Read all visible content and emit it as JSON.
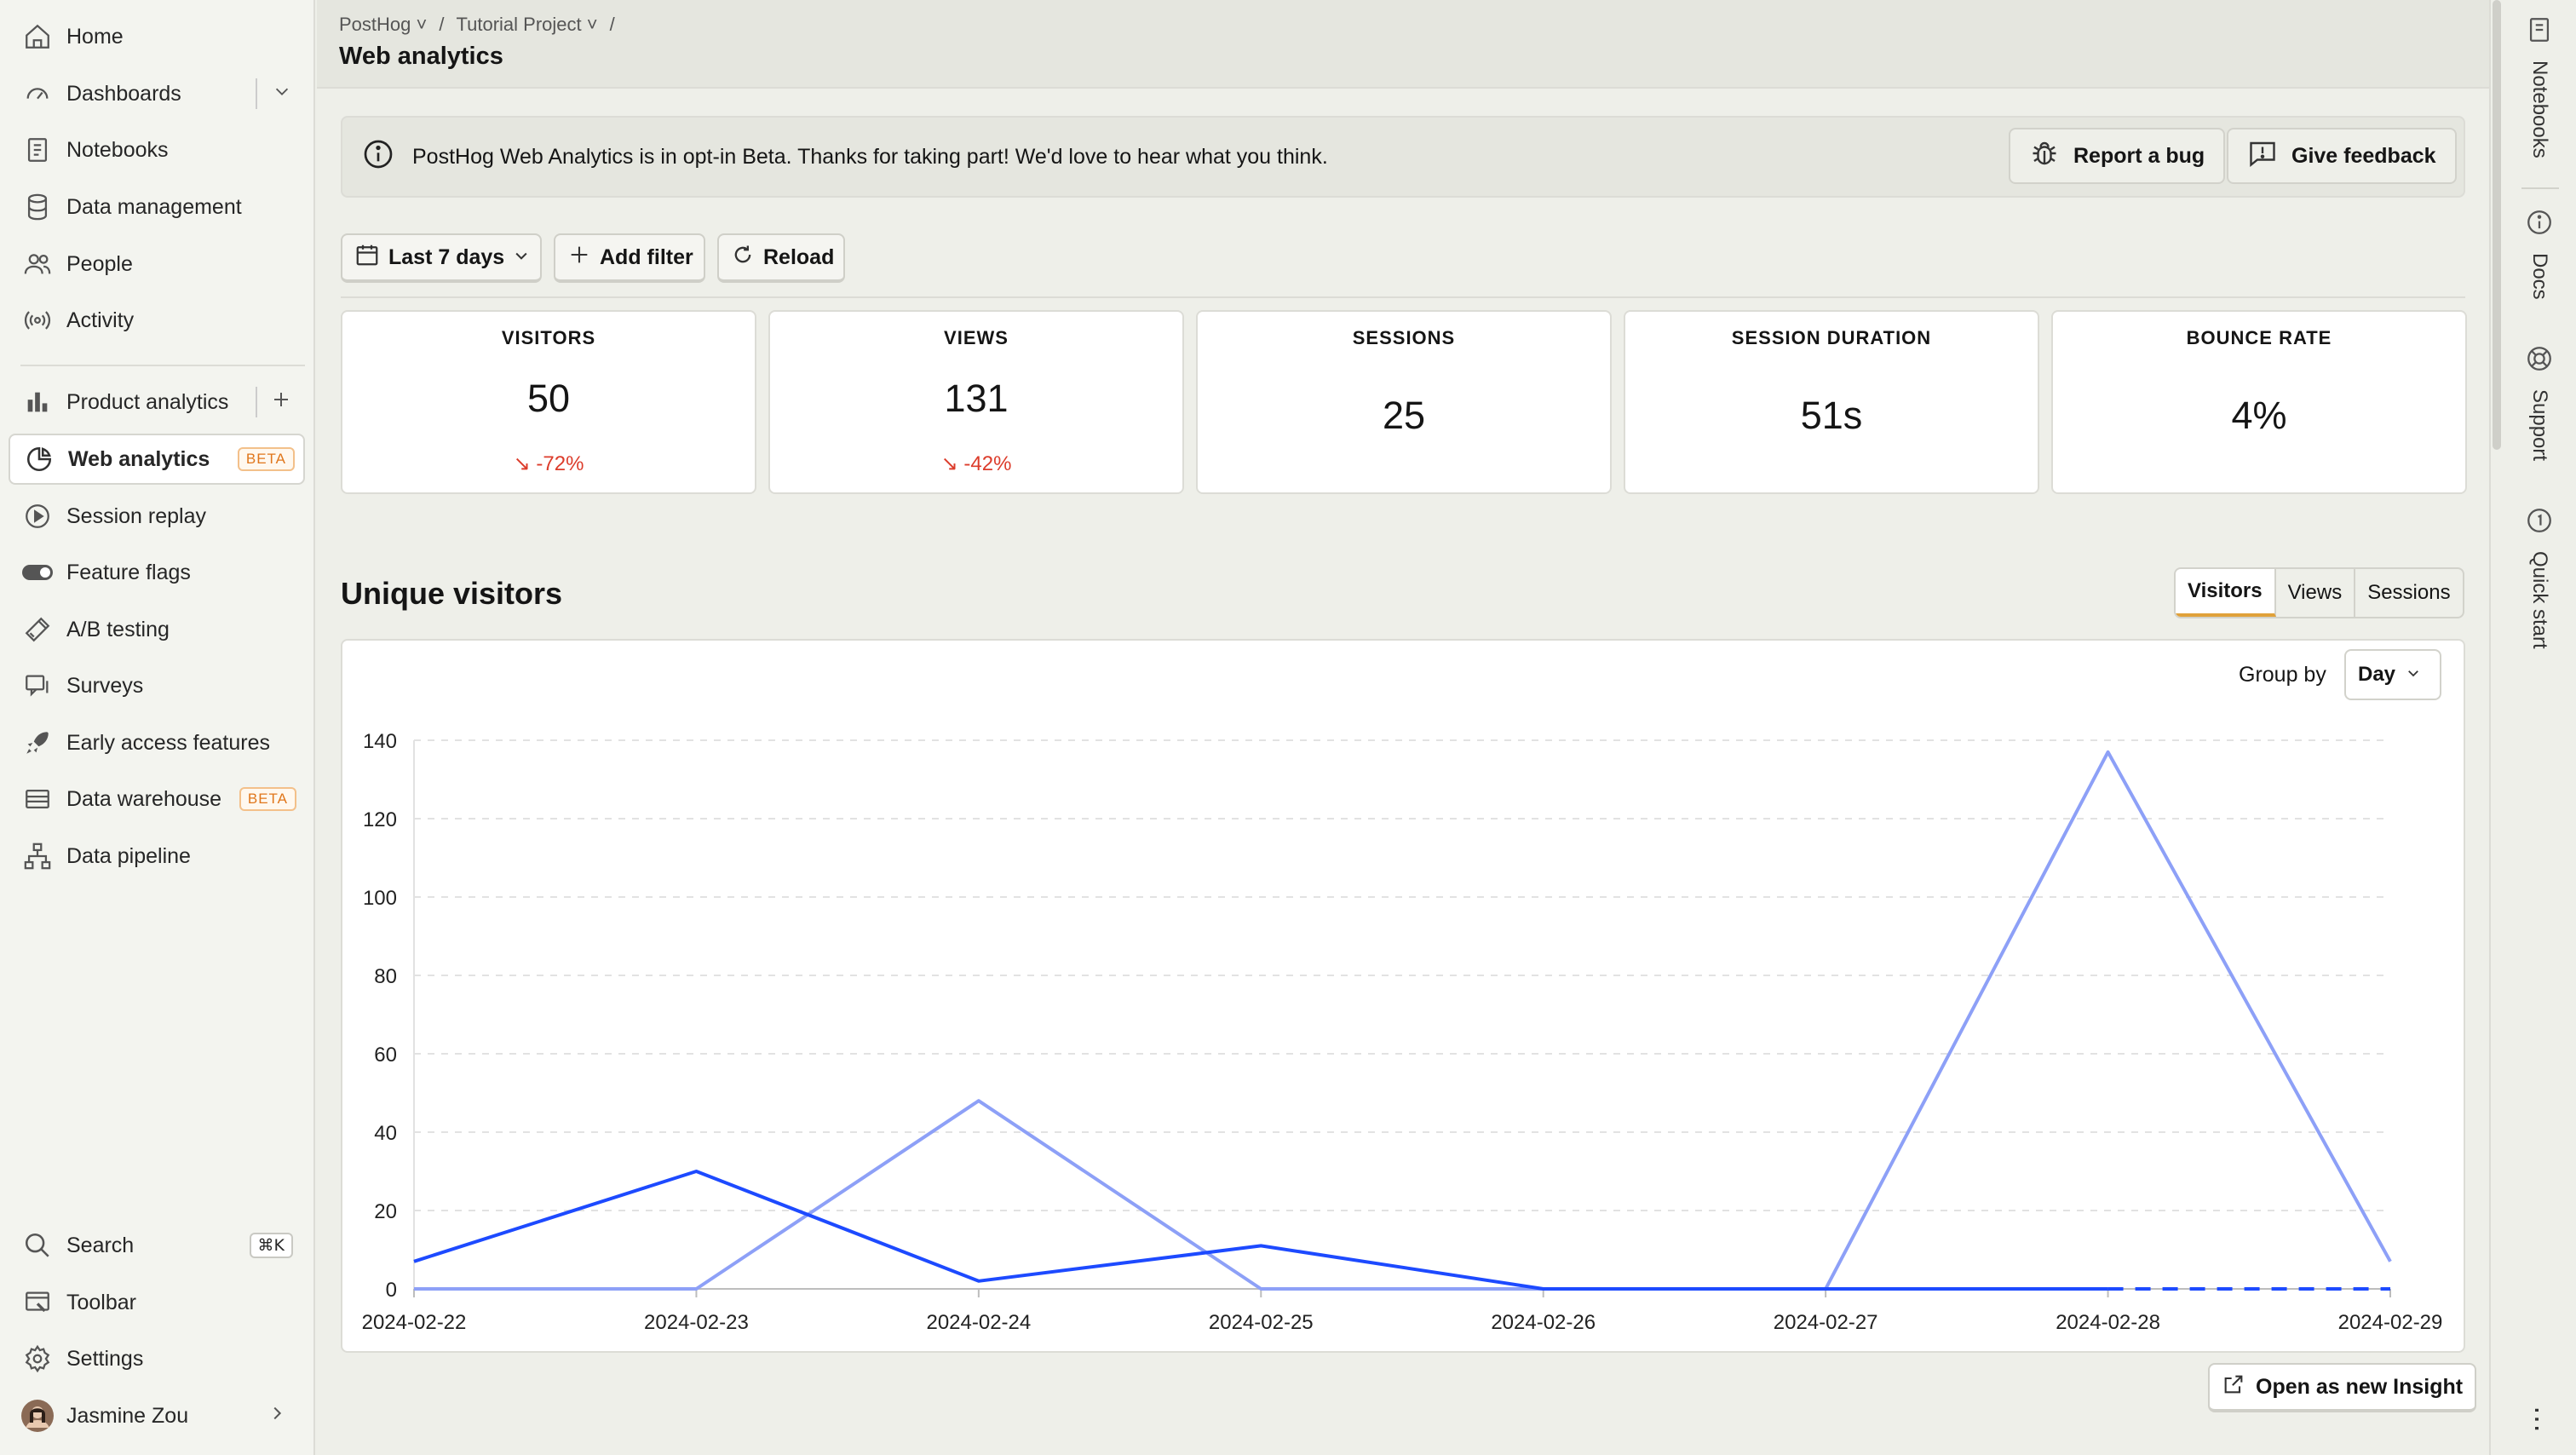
{
  "sidebar": {
    "items": [
      {
        "label": "Home",
        "icon": "home-icon"
      },
      {
        "label": "Dashboards",
        "icon": "dashboard-icon"
      },
      {
        "label": "Notebooks",
        "icon": "notebook-icon"
      },
      {
        "label": "Data management",
        "icon": "database-icon"
      },
      {
        "label": "People",
        "icon": "people-icon"
      },
      {
        "label": "Activity",
        "icon": "activity-icon"
      },
      {
        "label": "Product analytics",
        "icon": "bar-chart-icon"
      },
      {
        "label": "Web analytics",
        "icon": "pie-chart-icon",
        "badge": "BETA"
      },
      {
        "label": "Session replay",
        "icon": "play-icon"
      },
      {
        "label": "Feature flags",
        "icon": "toggle-icon"
      },
      {
        "label": "A/B testing",
        "icon": "flask-icon"
      },
      {
        "label": "Surveys",
        "icon": "survey-icon"
      },
      {
        "label": "Early access features",
        "icon": "rocket-icon"
      },
      {
        "label": "Data warehouse",
        "icon": "warehouse-icon",
        "badge": "BETA"
      },
      {
        "label": "Data pipeline",
        "icon": "pipeline-icon"
      }
    ],
    "bottom": [
      {
        "label": "Search",
        "icon": "search-icon",
        "shortcut": "⌘K"
      },
      {
        "label": "Toolbar",
        "icon": "toolbar-icon"
      },
      {
        "label": "Settings",
        "icon": "gear-icon"
      },
      {
        "label": "Jasmine Zou",
        "icon": "avatar"
      }
    ]
  },
  "header": {
    "breadcrumbs": [
      "PostHog",
      "Tutorial Project"
    ],
    "title": "Web analytics"
  },
  "banner": {
    "text": "PostHog Web Analytics is in opt-in Beta. Thanks for taking part! We'd love to hear what you think.",
    "report_bug": "Report a bug",
    "give_feedback": "Give feedback"
  },
  "filters": {
    "date_range": "Last 7 days",
    "add_filter": "Add filter",
    "reload": "Reload"
  },
  "stats": [
    {
      "title": "VISITORS",
      "value": "50",
      "change": "-72%"
    },
    {
      "title": "VIEWS",
      "value": "131",
      "change": "-42%"
    },
    {
      "title": "SESSIONS",
      "value": "25",
      "change": ""
    },
    {
      "title": "SESSION DURATION",
      "value": "51s",
      "change": ""
    },
    {
      "title": "BOUNCE RATE",
      "value": "4%",
      "change": ""
    }
  ],
  "section": {
    "title": "Unique visitors",
    "tabs": [
      "Visitors",
      "Views",
      "Sessions"
    ],
    "active_tab": "Visitors",
    "group_by_label": "Group by",
    "group_by_value": "Day",
    "open_insight": "Open as new Insight"
  },
  "colors": {
    "series_current": "#1d4aff",
    "series_previous": "#8da0f7",
    "negative": "#dc3c2b",
    "accent": "#e0a13a"
  },
  "chart_data": {
    "type": "line",
    "x": [
      "2024-02-22",
      "2024-02-23",
      "2024-02-24",
      "2024-02-25",
      "2024-02-26",
      "2024-02-27",
      "2024-02-28",
      "2024-02-29"
    ],
    "series": [
      {
        "values": [
          7,
          30,
          2,
          11,
          0,
          0,
          0,
          0
        ],
        "dashed_from_index": 6
      },
      {
        "values": [
          0,
          0,
          48,
          0,
          0,
          0,
          137,
          7
        ]
      }
    ],
    "y_ticks": [
      0,
      20,
      40,
      60,
      80,
      100,
      120,
      140
    ],
    "ylim": [
      0,
      140
    ],
    "grid": true
  },
  "right_panel": [
    "Notebooks",
    "Docs",
    "Support",
    "Quick start"
  ]
}
